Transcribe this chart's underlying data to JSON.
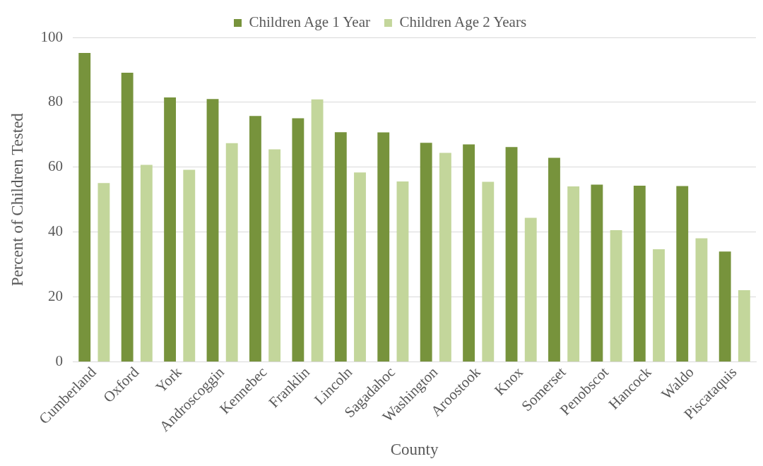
{
  "chart_data": {
    "type": "bar",
    "xlabel": "County",
    "ylabel": "Percent of Children Tested",
    "categories": [
      "Cumberland",
      "Oxford",
      "York",
      "Androscoggin",
      "Kennebec",
      "Franklin",
      "Lincoln",
      "Sagadahoc",
      "Washington",
      "Aroostook",
      "Knox",
      "Somerset",
      "Penobscot",
      "Hancock",
      "Waldo",
      "Piscataquis"
    ],
    "series": [
      {
        "name": "Children Age 1 Year",
        "color": "#77933c",
        "values": [
          95.2,
          89.1,
          81.5,
          81.0,
          75.8,
          75.1,
          70.8,
          70.7,
          67.5,
          67.0,
          66.2,
          62.9,
          54.6,
          54.3,
          54.2,
          34.0
        ]
      },
      {
        "name": "Children Age 2 Years",
        "color": "#c3d69b",
        "values": [
          55.1,
          60.7,
          59.2,
          67.4,
          65.5,
          80.9,
          58.4,
          55.6,
          64.4,
          55.5,
          44.4,
          54.1,
          40.6,
          34.7,
          38.1,
          22.1
        ]
      }
    ],
    "ylim": [
      0,
      100
    ],
    "yticks": [
      0,
      20,
      40,
      60,
      80,
      100
    ],
    "grid": "y",
    "legend": "top"
  }
}
